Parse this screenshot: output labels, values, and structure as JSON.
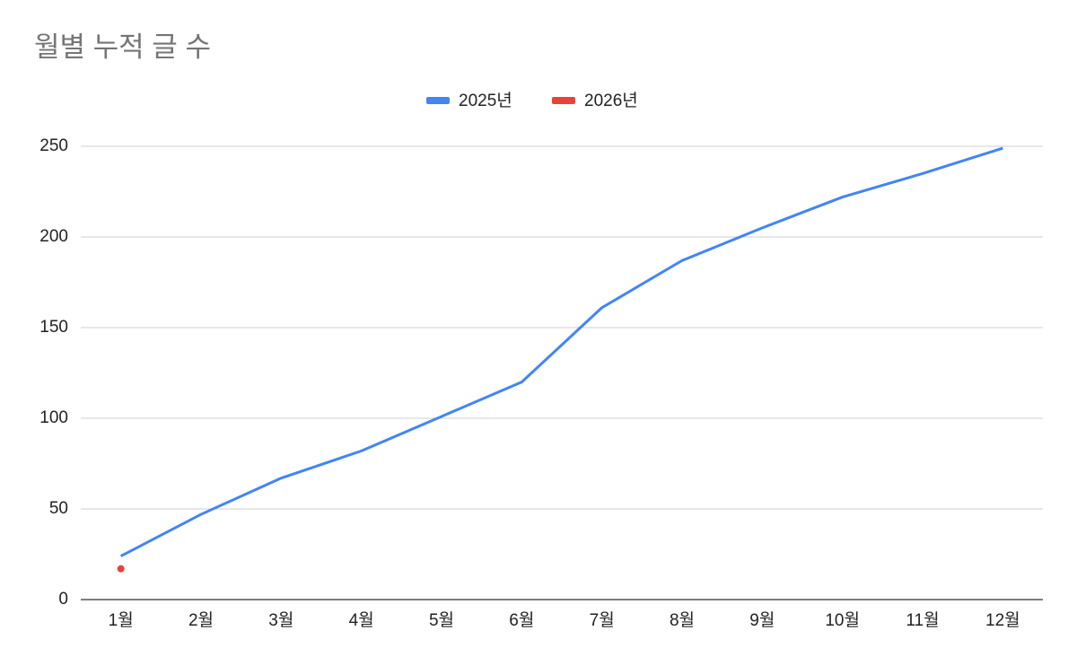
{
  "chart_data": {
    "type": "line",
    "title": "월별 누적 글 수",
    "categories": [
      "1월",
      "2월",
      "3월",
      "4월",
      "5월",
      "6월",
      "7월",
      "8월",
      "9월",
      "10월",
      "11월",
      "12월"
    ],
    "series": [
      {
        "name": "2025년",
        "color": "#4285f4",
        "values": [
          24,
          47,
          67,
          82,
          101,
          120,
          161,
          187,
          205,
          222,
          235,
          249
        ]
      },
      {
        "name": "2026년",
        "color": "#ea4335",
        "values": [
          17,
          null,
          null,
          null,
          null,
          null,
          null,
          null,
          null,
          null,
          null,
          null
        ]
      }
    ],
    "ylim": [
      0,
      250
    ],
    "yticks": [
      0,
      50,
      100,
      150,
      200,
      250
    ],
    "grid": true,
    "legend": "top"
  }
}
